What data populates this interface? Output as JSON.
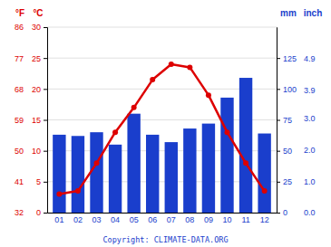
{
  "chart_data": {
    "type": "bar",
    "categories": [
      "01",
      "02",
      "03",
      "04",
      "05",
      "06",
      "07",
      "08",
      "09",
      "10",
      "11",
      "12"
    ],
    "series": [
      {
        "type": "bar",
        "axis": "y2",
        "color": "#1a3ecc",
        "values": [
          63,
          62,
          65,
          55,
          80,
          63,
          57,
          68,
          72,
          93,
          109,
          64
        ]
      },
      {
        "type": "line",
        "color": "#dd0000",
        "marker": "circle",
        "values": [
          3.0,
          3.5,
          8.0,
          13.0,
          17.0,
          21.5,
          24.0,
          23.5,
          19.0,
          13.0,
          8.0,
          3.5
        ]
      }
    ],
    "ylabel": "°C",
    "ylim": [
      0,
      30
    ],
    "yticks": [
      0,
      5,
      10,
      15,
      20,
      25,
      30
    ],
    "y2label": "mm",
    "y2lim": [
      0,
      150
    ],
    "y2ticks": [
      0,
      25,
      50,
      75,
      100,
      125
    ],
    "y3label": "°F",
    "y3lim": [
      32,
      86
    ],
    "y3ticks": [
      32,
      41,
      50,
      59,
      68,
      77,
      86
    ],
    "y4label": "inch",
    "y4lim": [
      0,
      150
    ],
    "y4ticks": [
      {
        "value": 0,
        "label": "0.0"
      },
      {
        "value": 25.4,
        "label": "1.0"
      },
      {
        "value": 50.8,
        "label": "2.0"
      },
      {
        "value": 76.2,
        "label": "3.0"
      },
      {
        "value": 99.06,
        "label": "3.9"
      },
      {
        "value": 124.46,
        "label": "4.9"
      }
    ],
    "grid": true,
    "annotations": [
      "Copyright: CLIMATE-DATA.ORG"
    ]
  }
}
